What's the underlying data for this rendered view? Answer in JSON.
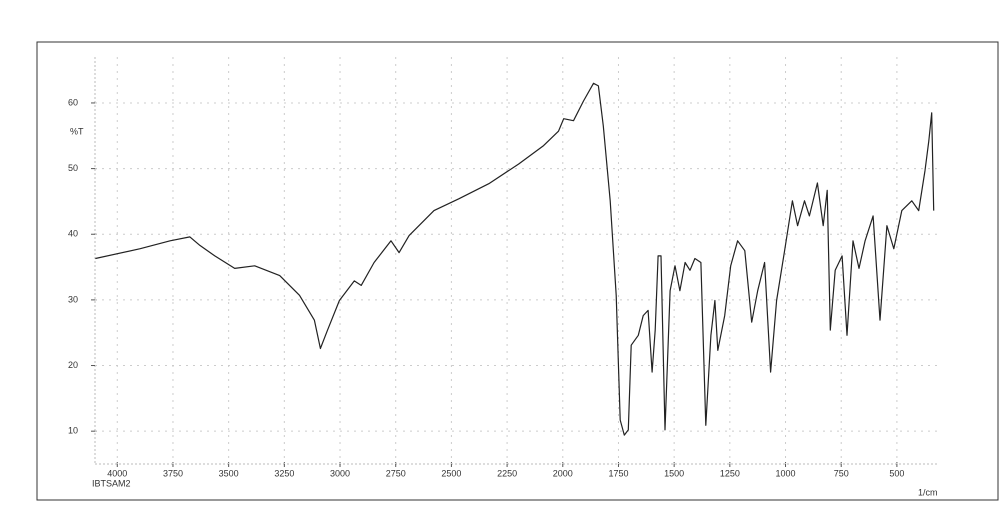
{
  "chart_data": {
    "type": "line",
    "y_label": "%T",
    "x_label": "1/cm",
    "sample": "IBTSAM2",
    "x": [
      4098,
      3897,
      3763,
      3674,
      3629,
      3562,
      3473,
      3383,
      3271,
      3182,
      3115,
      3088,
      3057,
      3003,
      2936,
      2905,
      2847,
      2771,
      2735,
      2690,
      2578,
      2467,
      2332,
      2198,
      2086,
      2019,
      1996,
      1952,
      1907,
      1862,
      1840,
      1818,
      1787,
      1760,
      1742,
      1724,
      1706,
      1693,
      1661,
      1639,
      1617,
      1599,
      1585,
      1572,
      1559,
      1541,
      1518,
      1496,
      1474,
      1451,
      1429,
      1407,
      1380,
      1358,
      1335,
      1317,
      1304,
      1273,
      1246,
      1215,
      1183,
      1152,
      1125,
      1094,
      1067,
      1040,
      1004,
      969,
      946,
      915,
      893,
      857,
      831,
      813,
      799,
      777,
      746,
      724,
      697,
      670,
      643,
      607,
      576,
      545,
      514,
      478,
      433,
      402,
      374,
      357,
      344,
      335
    ],
    "values": [
      36.3,
      37.8,
      39.0,
      39.6,
      38.3,
      36.7,
      34.8,
      35.2,
      33.7,
      30.7,
      26.9,
      22.6,
      25.3,
      29.9,
      32.9,
      32.2,
      35.7,
      39.0,
      37.2,
      39.8,
      43.6,
      45.4,
      47.7,
      50.7,
      53.5,
      55.7,
      57.6,
      57.3,
      60.3,
      63.0,
      62.6,
      56.5,
      45.1,
      30.7,
      11.7,
      9.4,
      10.2,
      23.1,
      24.6,
      27.6,
      28.4,
      19.0,
      25.4,
      36.7,
      36.7,
      10.2,
      31.4,
      35.2,
      31.4,
      35.7,
      34.5,
      36.3,
      35.7,
      10.9,
      24.6,
      29.9,
      22.3,
      27.6,
      35.2,
      39.0,
      37.5,
      26.6,
      31.4,
      35.7,
      19.0,
      29.9,
      37.5,
      45.1,
      41.3,
      45.1,
      42.8,
      47.8,
      41.3,
      46.7,
      25.4,
      34.5,
      36.7,
      24.6,
      39.0,
      34.8,
      39.0,
      42.8,
      26.9,
      41.3,
      37.8,
      43.6,
      45.1,
      43.6,
      49.7,
      54.2,
      58.5,
      43.6
    ],
    "color": "#222222",
    "xlim": [
      4100,
      320
    ],
    "xticks": [
      4000,
      3750,
      3500,
      3250,
      3000,
      2750,
      2500,
      2250,
      2000,
      1750,
      1500,
      1250,
      1000,
      750,
      500
    ],
    "ylim": [
      5,
      67
    ],
    "yticks": [
      10,
      20,
      30,
      40,
      50,
      60
    ],
    "grid": true
  }
}
